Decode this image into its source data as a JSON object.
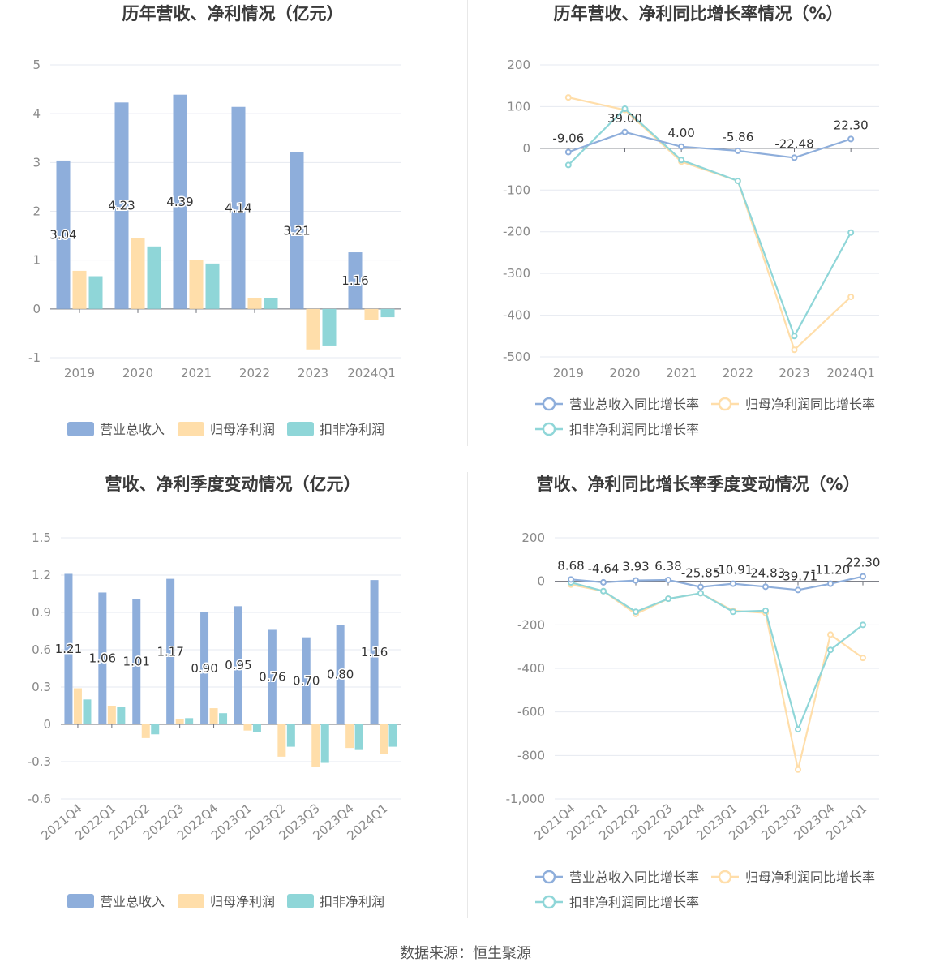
{
  "colors": {
    "revenue": "#8eaedb",
    "netprofit": "#ffdeaa",
    "deducted": "#8fd6d8",
    "grid": "#e6e9f0",
    "axis": "#6e7079",
    "tick": "#8a8a8a",
    "title": "#3a3a3a"
  },
  "footer": {
    "source": "数据来源：恒生聚源"
  },
  "chart_data": [
    {
      "type": "bar",
      "title": "历年营收、净利情况（亿元）",
      "categories": [
        "2019",
        "2020",
        "2021",
        "2022",
        "2023",
        "2024Q1"
      ],
      "ylim": [
        -1,
        5
      ],
      "yticks": [
        "5",
        "4",
        "3",
        "2",
        "1",
        "0",
        "-1"
      ],
      "ytick_values": [
        5,
        4,
        3,
        2,
        1,
        0,
        -1
      ],
      "series": [
        {
          "name": "营业总收入",
          "values": [
            3.04,
            4.23,
            4.39,
            4.14,
            3.21,
            1.16
          ],
          "labels": [
            "3.04",
            "4.23",
            "4.39",
            "4.14",
            "3.21",
            "1.16"
          ]
        },
        {
          "name": "归母净利润",
          "values": [
            0.78,
            1.45,
            1.01,
            0.23,
            -0.83,
            -0.23
          ]
        },
        {
          "name": "扣非净利润",
          "values": [
            0.67,
            1.28,
            0.93,
            0.23,
            -0.75,
            -0.17
          ]
        }
      ],
      "legend": [
        "营业总收入",
        "归母净利润",
        "扣非净利润"
      ]
    },
    {
      "type": "line",
      "title": "历年营收、净利同比增长率情况（%）",
      "categories": [
        "2019",
        "2020",
        "2021",
        "2022",
        "2023",
        "2024Q1"
      ],
      "ylim": [
        -500,
        200
      ],
      "yticks": [
        "200",
        "100",
        "0",
        "-100",
        "-200",
        "-300",
        "-400",
        "-500"
      ],
      "ytick_values": [
        200,
        100,
        0,
        -100,
        -200,
        -300,
        -400,
        -500
      ],
      "series": [
        {
          "name": "营业总收入同比增长率",
          "values": [
            -9.06,
            39.0,
            4.0,
            -5.86,
            -22.48,
            22.3
          ],
          "labels": [
            "-9.06",
            "39.00",
            "4.00",
            "-5.86",
            "-22.48",
            "22.30"
          ]
        },
        {
          "name": "归母净利润同比增长率",
          "values": [
            122,
            92,
            -32,
            -78,
            -483,
            -356
          ]
        },
        {
          "name": "扣非净利润同比增长率",
          "values": [
            -40,
            95,
            -28,
            -78,
            -450,
            -202
          ]
        }
      ],
      "legend": [
        "营业总收入同比增长率",
        "归母净利润同比增长率",
        "扣非净利润同比增长率"
      ]
    },
    {
      "type": "bar",
      "title": "营收、净利季度变动情况（亿元）",
      "categories": [
        "2021Q4",
        "2022Q1",
        "2022Q2",
        "2022Q3",
        "2022Q4",
        "2023Q1",
        "2023Q2",
        "2023Q3",
        "2023Q4",
        "2024Q1"
      ],
      "ylim": [
        -0.6,
        1.5
      ],
      "yticks": [
        "1.5",
        "1.2",
        "0.9",
        "0.6",
        "0.3",
        "0",
        "-0.3",
        "-0.6"
      ],
      "ytick_values": [
        1.5,
        1.2,
        0.9,
        0.6,
        0.3,
        0,
        -0.3,
        -0.6
      ],
      "series": [
        {
          "name": "营业总收入",
          "values": [
            1.21,
            1.06,
            1.01,
            1.17,
            0.9,
            0.95,
            0.76,
            0.7,
            0.8,
            1.16
          ],
          "labels": [
            "1.21",
            "1.06",
            "1.01",
            "1.17",
            "0.90",
            "0.95",
            "0.76",
            "0.70",
            "0.80",
            "1.16"
          ]
        },
        {
          "name": "归母净利润",
          "values": [
            0.29,
            0.15,
            -0.11,
            0.04,
            0.13,
            -0.05,
            -0.26,
            -0.34,
            -0.19,
            -0.24
          ]
        },
        {
          "name": "扣非净利润",
          "values": [
            0.2,
            0.14,
            -0.08,
            0.05,
            0.09,
            -0.06,
            -0.18,
            -0.31,
            -0.2,
            -0.18
          ]
        }
      ],
      "legend": [
        "营业总收入",
        "归母净利润",
        "扣非净利润"
      ]
    },
    {
      "type": "line",
      "title": "营收、净利同比增长率季度变动情况（%）",
      "categories": [
        "2021Q4",
        "2022Q1",
        "2022Q2",
        "2022Q3",
        "2022Q4",
        "2023Q1",
        "2023Q2",
        "2023Q3",
        "2023Q4",
        "2024Q1"
      ],
      "ylim": [
        -1000,
        200
      ],
      "yticks": [
        "200",
        "0",
        "-200",
        "-400",
        "-600",
        "-800",
        "-1,000"
      ],
      "ytick_values": [
        200,
        0,
        -200,
        -400,
        -600,
        -800,
        -1000
      ],
      "series": [
        {
          "name": "营业总收入同比增长率",
          "values": [
            8.68,
            -4.64,
            3.93,
            6.38,
            -25.85,
            -10.91,
            -24.83,
            -39.71,
            -11.2,
            22.3
          ],
          "labels": [
            "8.68",
            "-4.64",
            "3.93",
            "6.38",
            "-25.85",
            "-10.91",
            "-24.83",
            "-39.71",
            "-11.20",
            "22.30"
          ]
        },
        {
          "name": "归母净利润同比增长率",
          "values": [
            -15,
            -45,
            -150,
            -80,
            -55,
            -135,
            -145,
            -865,
            -245,
            -352
          ]
        },
        {
          "name": "扣非净利润同比增长率",
          "values": [
            -5,
            -45,
            -140,
            -80,
            -55,
            -140,
            -135,
            -680,
            -315,
            -200
          ]
        }
      ],
      "legend": [
        "营业总收入同比增长率",
        "归母净利润同比增长率",
        "扣非净利润同比增长率"
      ]
    }
  ]
}
